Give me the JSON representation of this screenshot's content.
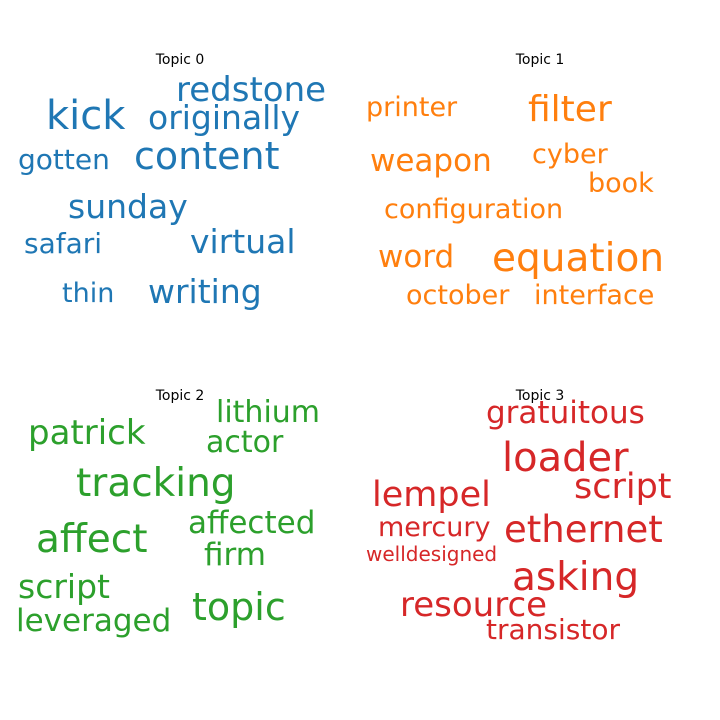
{
  "chart_data": {
    "type": "wordcloud",
    "panels": [
      {
        "title": "Topic 0",
        "color": "#1f77b4",
        "words": [
          {
            "text": "redstone",
            "weight": 0.9
          },
          {
            "text": "kick",
            "weight": 1.0
          },
          {
            "text": "originally",
            "weight": 0.87
          },
          {
            "text": "content",
            "weight": 1.0
          },
          {
            "text": "gotten",
            "weight": 0.72
          },
          {
            "text": "sunday",
            "weight": 0.9
          },
          {
            "text": "safari",
            "weight": 0.72
          },
          {
            "text": "virtual",
            "weight": 0.9
          },
          {
            "text": "thin",
            "weight": 0.7
          },
          {
            "text": "writing",
            "weight": 0.9
          }
        ]
      },
      {
        "title": "Topic 1",
        "color": "#ff7f0e",
        "words": [
          {
            "text": "printer",
            "weight": 0.75
          },
          {
            "text": "filter",
            "weight": 0.95
          },
          {
            "text": "weapon",
            "weight": 0.85
          },
          {
            "text": "cyber",
            "weight": 0.75
          },
          {
            "text": "book",
            "weight": 0.75
          },
          {
            "text": "configuration",
            "weight": 0.75
          },
          {
            "text": "word",
            "weight": 0.85
          },
          {
            "text": "equation",
            "weight": 1.0
          },
          {
            "text": "october",
            "weight": 0.75
          },
          {
            "text": "interface",
            "weight": 0.75
          }
        ]
      },
      {
        "title": "Topic 2",
        "color": "#2ca02c",
        "words": [
          {
            "text": "lithium",
            "weight": 0.8
          },
          {
            "text": "patrick",
            "weight": 0.9
          },
          {
            "text": "actor",
            "weight": 0.8
          },
          {
            "text": "tracking",
            "weight": 1.0
          },
          {
            "text": "affected",
            "weight": 0.8
          },
          {
            "text": "affect",
            "weight": 1.0
          },
          {
            "text": "firm",
            "weight": 0.8
          },
          {
            "text": "script",
            "weight": 0.9
          },
          {
            "text": "topic",
            "weight": 1.0
          },
          {
            "text": "leveraged",
            "weight": 0.8
          }
        ]
      },
      {
        "title": "Topic 3",
        "color": "#d62728",
        "words": [
          {
            "text": "gratuitous",
            "weight": 0.8
          },
          {
            "text": "loader",
            "weight": 1.0
          },
          {
            "text": "script",
            "weight": 0.9
          },
          {
            "text": "lempel",
            "weight": 0.9
          },
          {
            "text": "mercury",
            "weight": 0.75
          },
          {
            "text": "ethernet",
            "weight": 0.95
          },
          {
            "text": "welldesigned",
            "weight": 0.6
          },
          {
            "text": "asking",
            "weight": 1.0
          },
          {
            "text": "resource",
            "weight": 0.9
          },
          {
            "text": "transistor",
            "weight": 0.8
          }
        ]
      }
    ]
  }
}
